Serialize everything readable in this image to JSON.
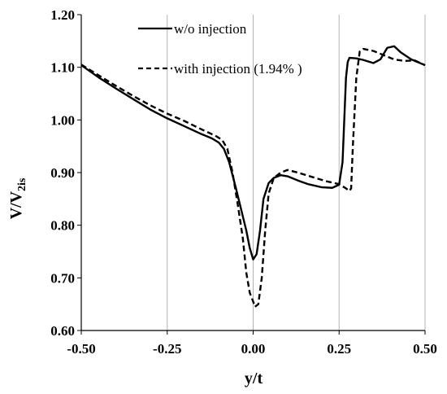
{
  "chart_data": {
    "type": "line",
    "xlabel": "y/t",
    "ylabel_main": "V/V",
    "ylabel_sub": "2is",
    "xlim": [
      -0.5,
      0.5
    ],
    "ylim": [
      0.6,
      1.2
    ],
    "xticks": [
      -0.5,
      -0.25,
      0.0,
      0.25,
      0.5
    ],
    "xtick_labels": [
      "-0.50",
      "-0.25",
      "0.00",
      "0.25",
      "0.50"
    ],
    "yticks": [
      0.6,
      0.7,
      0.8,
      0.9,
      1.0,
      1.1,
      1.2
    ],
    "ytick_labels": [
      "0.60",
      "0.70",
      "0.80",
      "0.90",
      "1.00",
      "1.10",
      "1.20"
    ],
    "grid": "vertical",
    "legend_position": "top-center",
    "series": [
      {
        "name": "w/o injection",
        "style": "solid",
        "color": "#000000",
        "x": [
          -0.5,
          -0.45,
          -0.4,
          -0.35,
          -0.3,
          -0.25,
          -0.2,
          -0.15,
          -0.12,
          -0.1,
          -0.085,
          -0.07,
          -0.05,
          -0.035,
          -0.02,
          -0.01,
          0.0,
          0.01,
          0.02,
          0.03,
          0.045,
          0.06,
          0.08,
          0.1,
          0.13,
          0.16,
          0.2,
          0.23,
          0.25,
          0.26,
          0.265,
          0.27,
          0.275,
          0.28,
          0.3,
          0.32,
          0.35,
          0.37,
          0.39,
          0.41,
          0.43,
          0.46,
          0.5
        ],
        "y": [
          1.104,
          1.081,
          1.06,
          1.04,
          1.02,
          1.003,
          0.988,
          0.973,
          0.965,
          0.957,
          0.945,
          0.92,
          0.87,
          0.83,
          0.79,
          0.757,
          0.735,
          0.745,
          0.79,
          0.85,
          0.88,
          0.89,
          0.895,
          0.893,
          0.885,
          0.878,
          0.872,
          0.871,
          0.877,
          0.92,
          1.0,
          1.08,
          1.11,
          1.118,
          1.117,
          1.114,
          1.108,
          1.115,
          1.137,
          1.14,
          1.128,
          1.115,
          1.104
        ]
      },
      {
        "name": "with injection (1.94% )",
        "style": "dashed",
        "color": "#000000",
        "x": [
          -0.5,
          -0.45,
          -0.4,
          -0.35,
          -0.3,
          -0.25,
          -0.2,
          -0.15,
          -0.11,
          -0.09,
          -0.075,
          -0.06,
          -0.045,
          -0.03,
          -0.02,
          -0.01,
          0.0,
          0.005,
          0.015,
          0.025,
          0.035,
          0.045,
          0.06,
          0.08,
          0.1,
          0.13,
          0.17,
          0.21,
          0.25,
          0.27,
          0.28,
          0.285,
          0.29,
          0.3,
          0.31,
          0.32,
          0.35,
          0.38,
          0.41,
          0.44,
          0.47,
          0.5
        ],
        "y": [
          1.105,
          1.085,
          1.065,
          1.046,
          1.028,
          1.012,
          0.998,
          0.982,
          0.97,
          0.962,
          0.945,
          0.9,
          0.84,
          0.775,
          0.71,
          0.672,
          0.655,
          0.645,
          0.65,
          0.7,
          0.79,
          0.86,
          0.89,
          0.9,
          0.905,
          0.9,
          0.892,
          0.884,
          0.878,
          0.87,
          0.865,
          0.87,
          0.95,
          1.08,
          1.13,
          1.135,
          1.131,
          1.123,
          1.115,
          1.112,
          1.113,
          1.104
        ]
      }
    ]
  }
}
